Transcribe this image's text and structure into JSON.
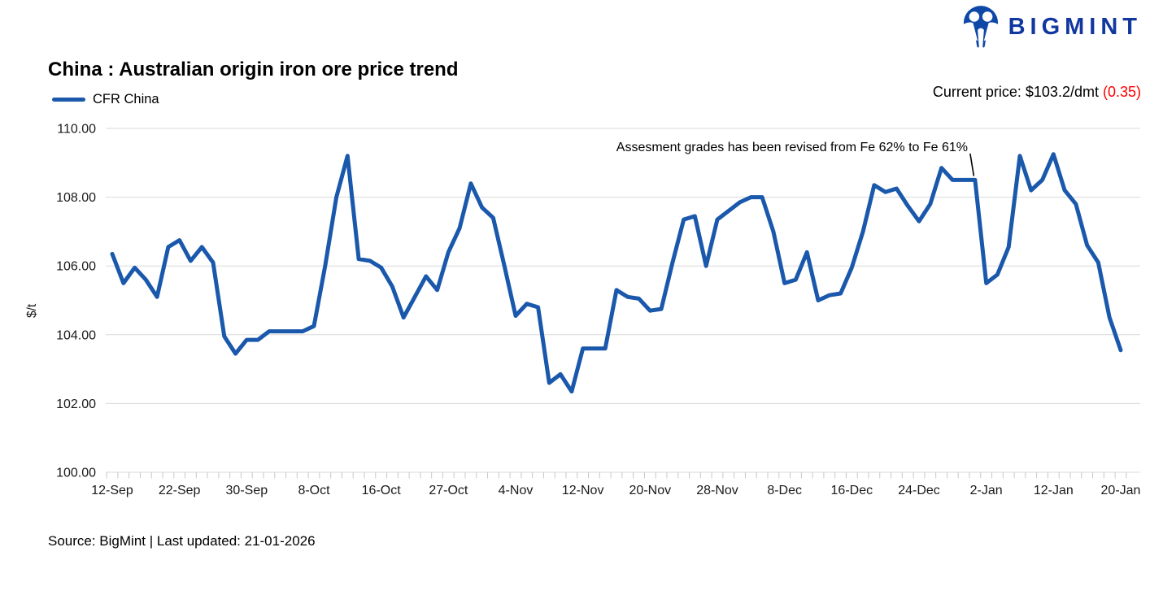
{
  "brand": {
    "name": "BIGMINT",
    "logo_icon": "bigmint-people-icon"
  },
  "title": "China : Australian origin iron ore price trend",
  "legend": {
    "label": "CFR China"
  },
  "current_price": {
    "prefix": "Current price: $103.2/dmt ",
    "change": "(0.35)"
  },
  "annotation": {
    "text": "Assesment grades has been revised from Fe 62% to Fe 61%",
    "point_index": 77
  },
  "source": "Source: BigMint | Last updated: 21-01-2026",
  "axes": {
    "y_title": "$/t"
  },
  "colors": {
    "line": "#1A58AC",
    "gridline": "#DADADA",
    "tick": "#C8C8C8",
    "axis_text": "#1A1A1A",
    "negative": "#FF0000",
    "brand_blue": "#1238A0",
    "logo_blue": "#0F49A8"
  },
  "chart_data": {
    "type": "line",
    "title": "China : Australian origin iron ore price trend",
    "xlabel": "",
    "ylabel": "$/t",
    "ylim": [
      100,
      110
    ],
    "y_tick_labels": [
      "110.00",
      "108.00",
      "106.00",
      "104.00",
      "102.00",
      "100.00"
    ],
    "x_tick_labels": [
      "12-Sep",
      "22-Sep",
      "30-Sep",
      "8-Oct",
      "16-Oct",
      "27-Oct",
      "4-Nov",
      "12-Nov",
      "20-Nov",
      "28-Nov",
      "8-Dec",
      "16-Dec",
      "24-Dec",
      "2-Jan",
      "12-Jan",
      "20-Jan"
    ],
    "points_per_label": 6,
    "grid": "horizontal",
    "legend_position": "top-left",
    "series": [
      {
        "name": "CFR China",
        "color": "#1A58AC",
        "values": [
          106.35,
          105.5,
          105.95,
          105.6,
          105.1,
          106.55,
          106.75,
          106.15,
          106.55,
          106.1,
          103.95,
          103.45,
          103.85,
          103.85,
          104.1,
          104.1,
          104.1,
          104.1,
          104.25,
          106.0,
          108.0,
          109.2,
          106.2,
          106.15,
          105.95,
          105.4,
          104.5,
          105.1,
          105.7,
          105.3,
          106.4,
          107.1,
          108.4,
          107.7,
          107.4,
          106.0,
          104.55,
          104.9,
          104.8,
          102.6,
          102.85,
          102.35,
          103.6,
          103.6,
          103.6,
          105.3,
          105.1,
          105.05,
          104.7,
          104.75,
          106.1,
          107.35,
          107.45,
          106.0,
          107.35,
          107.6,
          107.85,
          108.0,
          108.0,
          107.0,
          105.5,
          105.6,
          106.4,
          105.0,
          105.15,
          105.2,
          105.95,
          107.0,
          108.35,
          108.15,
          108.25,
          107.75,
          107.3,
          107.8,
          108.85,
          108.5,
          108.5,
          108.5,
          105.5,
          105.75,
          106.55,
          109.2,
          108.2,
          108.5,
          109.25,
          108.2,
          107.8,
          106.6,
          106.1,
          104.5,
          103.55
        ]
      }
    ]
  }
}
